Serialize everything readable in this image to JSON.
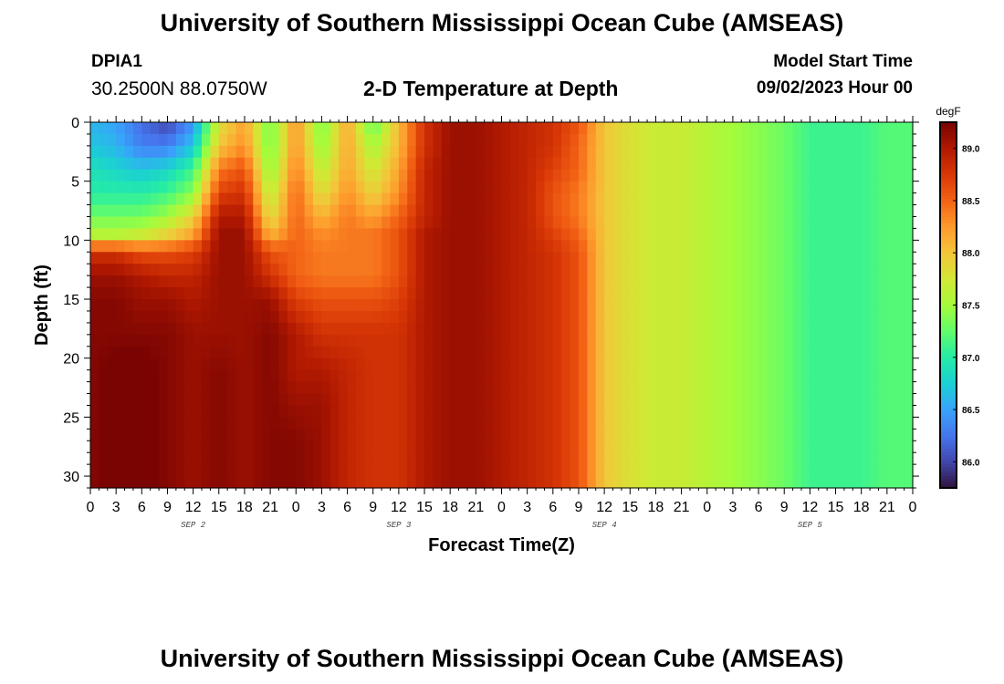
{
  "header": {
    "title": "University of Southern Mississippi Ocean Cube (AMSEAS)",
    "station_id": "DPIA1",
    "station_coords": "30.2500N  88.0750W",
    "chart_title": "2-D Temperature at Depth",
    "model_start_label": "Model Start Time",
    "model_start_value": "09/02/2023 Hour 00"
  },
  "footer": {
    "title": "University of Southern Mississippi Ocean Cube (AMSEAS)"
  },
  "chart_data": {
    "type": "heatmap",
    "title": "2-D Temperature at Depth",
    "xlabel": "Forecast Time(Z)",
    "ylabel": "Depth (ft)",
    "x_unit": "hours since 09/02/2023 00Z",
    "xlim": [
      0,
      96
    ],
    "x_tick_step_hours": 3,
    "x_tick_labels": [
      "0",
      "3",
      "6",
      "9",
      "12",
      "15",
      "18",
      "21",
      "0",
      "3",
      "6",
      "9",
      "12",
      "15",
      "18",
      "21",
      "0",
      "3",
      "6",
      "9",
      "12",
      "15",
      "18",
      "21",
      "0",
      "3",
      "6",
      "9",
      "12",
      "15",
      "18",
      "21",
      "0"
    ],
    "day_labels": [
      {
        "label": "SEP 2",
        "hour": 12
      },
      {
        "label": "SEP 3",
        "hour": 36
      },
      {
        "label": "SEP 4",
        "hour": 60
      },
      {
        "label": "SEP 5",
        "hour": 84
      }
    ],
    "ylim": [
      0,
      31
    ],
    "y_ticks": [
      0,
      5,
      10,
      15,
      20,
      25,
      30
    ],
    "y_tick_labels": [
      "0",
      "5",
      "10",
      "15",
      "20",
      "25",
      "30"
    ],
    "colorbar": {
      "unit": "degF",
      "range": [
        85.75,
        89.25
      ],
      "ticks": [
        86.0,
        86.5,
        87.0,
        87.5,
        88.0,
        88.5,
        89.0
      ],
      "tick_labels": [
        "86.0",
        "86.5",
        "87.0",
        "87.5",
        "88.0",
        "88.5",
        "89.0"
      ],
      "colormap": [
        "#30123b",
        "#4145ab",
        "#4675ed",
        "#39a2fc",
        "#1bcfd4",
        "#24eca6",
        "#61fc6c",
        "#a4fc3b",
        "#d1e834",
        "#f3c63a",
        "#fe9b2d",
        "#f36315",
        "#d93806",
        "#b11901",
        "#7a0402"
      ]
    },
    "depths_ft": [
      0,
      2,
      4,
      6,
      8,
      9.5,
      11,
      13,
      15,
      18,
      21,
      24,
      27,
      30,
      31
    ],
    "time_anchors_h": [
      0,
      3,
      6,
      9,
      12,
      15,
      18,
      21,
      24,
      27,
      30,
      33,
      36,
      39,
      42,
      45,
      48,
      51,
      54,
      57,
      60,
      63,
      66,
      69,
      72,
      75,
      78,
      81,
      84,
      87,
      90,
      93,
      96
    ],
    "temperature_degF": [
      [
        86.6,
        86.5,
        86.2,
        86.0,
        86.4,
        87.8,
        88.2,
        87.3,
        88.3,
        87.3,
        88.2,
        87.2,
        88.1,
        88.8,
        89.1,
        89.1,
        89.0,
        88.9,
        88.8,
        88.6,
        88.0,
        87.8,
        87.7,
        87.7,
        87.6,
        87.5,
        87.4,
        87.3,
        87.1,
        87.1,
        87.1,
        87.2,
        87.2
      ],
      [
        86.7,
        86.6,
        86.3,
        86.3,
        86.7,
        88.0,
        88.3,
        87.3,
        88.3,
        87.4,
        88.2,
        87.5,
        88.1,
        88.8,
        89.1,
        89.1,
        89.0,
        88.9,
        88.8,
        88.5,
        88.0,
        87.8,
        87.7,
        87.7,
        87.6,
        87.5,
        87.4,
        87.3,
        87.1,
        87.1,
        87.1,
        87.2,
        87.2
      ],
      [
        86.9,
        86.8,
        86.7,
        86.8,
        87.1,
        88.4,
        88.6,
        87.4,
        88.4,
        87.6,
        88.2,
        87.7,
        88.2,
        88.9,
        89.1,
        89.1,
        89.0,
        88.9,
        88.7,
        88.5,
        88.0,
        87.8,
        87.7,
        87.7,
        87.6,
        87.5,
        87.4,
        87.3,
        87.1,
        87.1,
        87.1,
        87.2,
        87.2
      ],
      [
        87.0,
        87.0,
        87.0,
        87.1,
        87.4,
        88.7,
        88.8,
        87.6,
        88.5,
        87.8,
        88.3,
        87.9,
        88.3,
        88.9,
        89.1,
        89.1,
        89.0,
        88.9,
        88.6,
        88.4,
        88.0,
        87.8,
        87.7,
        87.7,
        87.6,
        87.5,
        87.4,
        87.3,
        87.1,
        87.1,
        87.1,
        87.2,
        87.2
      ],
      [
        87.3,
        87.3,
        87.3,
        87.5,
        87.9,
        89.0,
        89.0,
        87.8,
        88.5,
        88.1,
        88.4,
        88.2,
        88.5,
        88.9,
        89.1,
        89.1,
        89.0,
        88.9,
        88.6,
        88.4,
        88.0,
        87.8,
        87.7,
        87.7,
        87.6,
        87.5,
        87.4,
        87.3,
        87.1,
        87.1,
        87.1,
        87.2,
        87.2
      ],
      [
        87.6,
        87.6,
        87.7,
        87.9,
        88.2,
        89.1,
        89.1,
        88.1,
        88.5,
        88.3,
        88.4,
        88.4,
        88.6,
        89.0,
        89.1,
        89.1,
        89.0,
        88.9,
        88.7,
        88.5,
        88.0,
        87.8,
        87.7,
        87.7,
        87.6,
        87.5,
        87.4,
        87.3,
        87.1,
        87.1,
        87.1,
        87.2,
        87.2
      ],
      [
        88.8,
        88.8,
        88.6,
        88.6,
        88.7,
        89.1,
        89.1,
        88.6,
        88.5,
        88.4,
        88.4,
        88.4,
        88.6,
        89.0,
        89.1,
        89.1,
        89.0,
        88.9,
        88.8,
        88.6,
        88.0,
        87.8,
        87.7,
        87.7,
        87.6,
        87.5,
        87.4,
        87.3,
        87.1,
        87.1,
        87.1,
        87.2,
        87.2
      ],
      [
        89.1,
        89.1,
        89.0,
        88.9,
        88.9,
        89.1,
        89.1,
        88.8,
        88.5,
        88.4,
        88.4,
        88.4,
        88.6,
        89.0,
        89.1,
        89.1,
        89.0,
        88.9,
        88.8,
        88.6,
        88.0,
        87.8,
        87.7,
        87.7,
        87.6,
        87.5,
        87.4,
        87.3,
        87.1,
        87.1,
        87.1,
        87.2,
        87.2
      ],
      [
        89.2,
        89.2,
        89.1,
        89.1,
        89.0,
        89.1,
        89.1,
        89.1,
        88.7,
        88.6,
        88.6,
        88.6,
        88.7,
        89.0,
        89.1,
        89.1,
        89.0,
        88.9,
        88.8,
        88.6,
        88.0,
        87.8,
        87.7,
        87.7,
        87.6,
        87.5,
        87.4,
        87.3,
        87.1,
        87.1,
        87.1,
        87.2,
        87.2
      ],
      [
        89.2,
        89.2,
        89.2,
        89.2,
        89.1,
        89.1,
        89.1,
        89.2,
        89.0,
        88.8,
        88.8,
        88.8,
        88.8,
        89.0,
        89.1,
        89.1,
        89.0,
        88.9,
        88.8,
        88.6,
        88.0,
        87.8,
        87.7,
        87.7,
        87.6,
        87.5,
        87.4,
        87.3,
        87.1,
        87.1,
        87.1,
        87.2,
        87.2
      ],
      [
        89.2,
        89.3,
        89.3,
        89.2,
        89.1,
        89.2,
        89.1,
        89.2,
        89.0,
        89.0,
        88.9,
        88.8,
        88.8,
        89.0,
        89.1,
        89.1,
        89.0,
        88.9,
        88.8,
        88.6,
        88.0,
        87.8,
        87.7,
        87.7,
        87.6,
        87.5,
        87.4,
        87.3,
        87.1,
        87.1,
        87.1,
        87.2,
        87.2
      ],
      [
        89.2,
        89.3,
        89.3,
        89.2,
        89.1,
        89.2,
        89.1,
        89.2,
        89.1,
        89.1,
        88.9,
        88.8,
        88.8,
        89.0,
        89.1,
        89.1,
        89.0,
        88.9,
        88.8,
        88.6,
        88.0,
        87.8,
        87.7,
        87.7,
        87.6,
        87.5,
        87.4,
        87.3,
        87.1,
        87.1,
        87.1,
        87.2,
        87.2
      ],
      [
        89.2,
        89.3,
        89.3,
        89.2,
        89.1,
        89.2,
        89.1,
        89.2,
        89.2,
        89.1,
        88.9,
        88.8,
        88.8,
        89.0,
        89.1,
        89.1,
        89.0,
        88.9,
        88.8,
        88.6,
        88.0,
        87.8,
        87.7,
        87.7,
        87.6,
        87.5,
        87.4,
        87.3,
        87.1,
        87.1,
        87.1,
        87.2,
        87.2
      ],
      [
        89.2,
        89.3,
        89.3,
        89.2,
        89.1,
        89.2,
        89.1,
        89.2,
        89.2,
        89.1,
        88.9,
        88.8,
        88.8,
        89.0,
        89.1,
        89.1,
        89.0,
        88.9,
        88.8,
        88.6,
        88.0,
        87.8,
        87.7,
        87.7,
        87.6,
        87.5,
        87.4,
        87.3,
        87.1,
        87.1,
        87.1,
        87.2,
        87.2
      ],
      [
        89.2,
        89.3,
        89.3,
        89.2,
        89.1,
        89.2,
        89.1,
        89.2,
        89.2,
        89.1,
        88.9,
        88.8,
        88.8,
        89.0,
        89.1,
        89.1,
        89.0,
        88.9,
        88.8,
        88.6,
        88.0,
        87.8,
        87.7,
        87.7,
        87.6,
        87.5,
        87.4,
        87.3,
        87.1,
        87.1,
        87.1,
        87.2,
        87.2
      ]
    ]
  }
}
